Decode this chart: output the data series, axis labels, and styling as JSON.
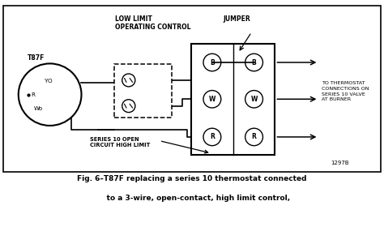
{
  "bg_color": "#ffffff",
  "border_color": "#000000",
  "fig_width": 4.74,
  "fig_height": 2.8,
  "caption_line1": "Fig. 6–T87F replacing a series 10 thermostat connected",
  "caption_line2": "     to a 3-wire, open-contact, high limit control,",
  "labels": {
    "low_limit": "LOW LIMIT\nOPERATING CONTROL",
    "jumper": "JUMPER",
    "t87f": "T87F",
    "yo": "YO",
    "r_term": "R",
    "wo": "Wo",
    "b_left": "B",
    "w_left": "W",
    "r_left": "R",
    "b_right": "B",
    "w_right": "W",
    "r_right": "R",
    "series10": "SERIES 10 OPEN\nCIRCUIT HIGH LIMIT",
    "to_thermostat": "TO THERMOSTAT\nCONNECTIONS ON\nSERIES 10 VALVE\nAT BURNER",
    "fig_num": "1297B"
  }
}
